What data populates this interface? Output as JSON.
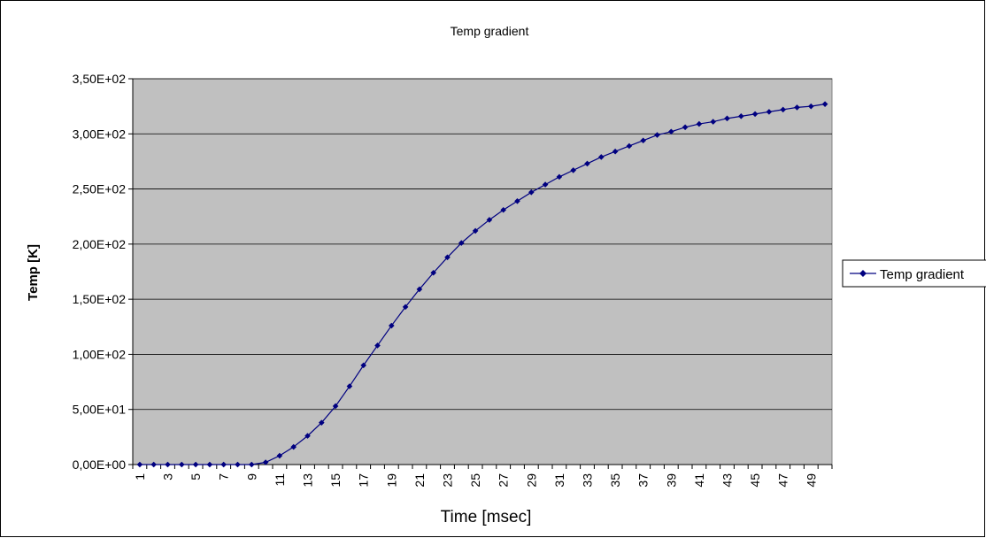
{
  "chart_data": {
    "type": "line",
    "title": "Temp gradient",
    "xlabel": "Time [msec]",
    "ylabel": "Temp [K]",
    "ylim": [
      0,
      350
    ],
    "yticks": [
      {
        "value": 0,
        "label": "0,00E+00"
      },
      {
        "value": 50,
        "label": "5,00E+01"
      },
      {
        "value": 100,
        "label": "1,00E+02"
      },
      {
        "value": 150,
        "label": "1,50E+02"
      },
      {
        "value": 200,
        "label": "2,00E+02"
      },
      {
        "value": 250,
        "label": "2,50E+02"
      },
      {
        "value": 300,
        "label": "3,00E+02"
      },
      {
        "value": 350,
        "label": "3,50E+02"
      }
    ],
    "x": [
      1,
      2,
      3,
      4,
      5,
      6,
      7,
      8,
      9,
      10,
      11,
      12,
      13,
      14,
      15,
      16,
      17,
      18,
      19,
      20,
      21,
      22,
      23,
      24,
      25,
      26,
      27,
      28,
      29,
      30,
      31,
      32,
      33,
      34,
      35,
      36,
      37,
      38,
      39,
      40,
      41,
      42,
      43,
      44,
      45,
      46,
      47,
      48,
      49,
      50
    ],
    "xtick_labels": [
      "1",
      "3",
      "5",
      "7",
      "9",
      "11",
      "13",
      "15",
      "17",
      "19",
      "21",
      "23",
      "25",
      "27",
      "29",
      "31",
      "33",
      "35",
      "37",
      "39",
      "41",
      "43",
      "45",
      "47",
      "49"
    ],
    "series": [
      {
        "name": "Temp gradient",
        "color": "#000080",
        "values": [
          0,
          0,
          0,
          0,
          0,
          0,
          0,
          0,
          0,
          2,
          8,
          16,
          26,
          38,
          53,
          71,
          90,
          108,
          126,
          143,
          159,
          174,
          188,
          201,
          212,
          222,
          231,
          239,
          247,
          254,
          261,
          267,
          273,
          279,
          284,
          289,
          294,
          299,
          302,
          306,
          309,
          311,
          314,
          316,
          318,
          320,
          322,
          324,
          325,
          327
        ]
      }
    ],
    "legend": {
      "position": "right",
      "entries": [
        "Temp gradient"
      ]
    },
    "grid": true,
    "plot_background": "#c0c0c0"
  }
}
